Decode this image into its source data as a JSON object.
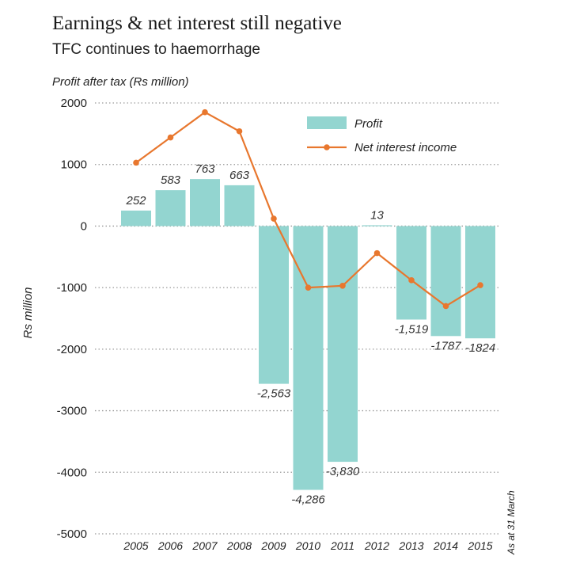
{
  "header": {
    "title": "Earnings & net interest still negative",
    "subtitle": "TFC continues to haemorrhage",
    "unit_label": "Profit after tax (Rs million)"
  },
  "note": "As at 31 March",
  "colors": {
    "bar": "#93d5d0",
    "line": "#e8772e",
    "grid": "#9a9a9a"
  },
  "chart_data": {
    "type": "bar",
    "categories": [
      "2005",
      "2006",
      "2007",
      "2008",
      "2009",
      "2010",
      "2011",
      "2012",
      "2013",
      "2014",
      "2015"
    ],
    "series": [
      {
        "name": "Profit",
        "type": "bar",
        "values": [
          252,
          583,
          763,
          663,
          -2563,
          -4286,
          -3830,
          13,
          -1519,
          -1787,
          -1824
        ],
        "labels": [
          "252",
          "583",
          "763",
          "663",
          "-2,563",
          "-4,286",
          "-3,830",
          "13",
          "-1,519",
          "-1787",
          "-1824"
        ]
      },
      {
        "name": "Net interest income",
        "type": "line",
        "values": [
          1030,
          1440,
          1850,
          1540,
          120,
          -1000,
          -970,
          -440,
          -880,
          -1300,
          -960
        ]
      }
    ],
    "ylabel": "Rs million",
    "ylim": [
      -5000,
      2000
    ],
    "yticks": [
      2000,
      1000,
      0,
      -1000,
      -2000,
      -3000,
      -4000,
      -5000
    ],
    "ytick_labels": [
      "2000",
      "1000",
      "0",
      "-1000",
      "-2000",
      "-3000",
      "-4000",
      "-5000"
    ],
    "grid": true,
    "legend_position": "top-right"
  }
}
